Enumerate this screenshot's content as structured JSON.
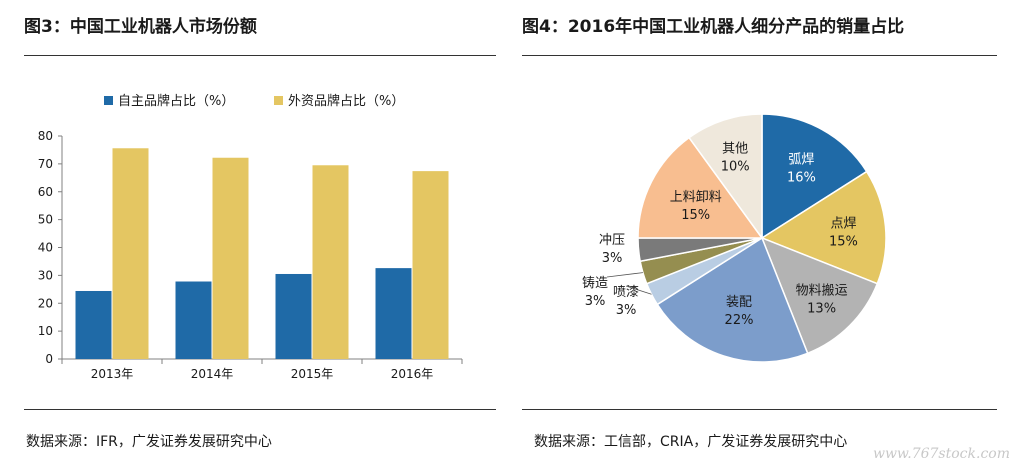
{
  "left": {
    "title": "图3：中国工业机器人市场份额",
    "source": "数据来源：IFR，广发证券发展研究中心"
  },
  "right": {
    "title": "图4：2016年中国工业机器人细分产品的销量占比",
    "source": "数据来源：工信部，CRIA，广发证券发展研究中心"
  },
  "watermark": "www.767stock.com",
  "colors": {
    "blue": "#1F6AA7",
    "gold": "#E4C662"
  },
  "chart_data": [
    {
      "type": "bar",
      "title": "中国工业机器人市场份额",
      "categories": [
        "2013年",
        "2014年",
        "2015年",
        "2016年"
      ],
      "series": [
        {
          "name": "自主品牌占比（%）",
          "values": [
            24.4,
            27.8,
            30.5,
            32.6
          ],
          "color": "#1F6AA7"
        },
        {
          "name": "外资品牌占比（%）",
          "values": [
            75.6,
            72.2,
            69.5,
            67.4
          ],
          "color": "#E4C662"
        }
      ],
      "xlabel": "",
      "ylabel": "",
      "ylim": [
        0,
        80
      ],
      "yticks": [
        0,
        10,
        20,
        30,
        40,
        50,
        60,
        70,
        80
      ],
      "legend": "top",
      "grid": false
    },
    {
      "type": "pie",
      "title": "2016年中国工业机器人细分产品的销量占比",
      "slices": [
        {
          "label": "弧焊",
          "value": 16,
          "text": "16%",
          "color": "#1F6AA7"
        },
        {
          "label": "点焊",
          "value": 15,
          "text": "15%",
          "color": "#E4C662"
        },
        {
          "label": "物料搬运",
          "value": 13,
          "text": "13%",
          "color": "#B3B3B3"
        },
        {
          "label": "装配",
          "value": 22,
          "text": "22%",
          "color": "#7C9DCB"
        },
        {
          "label": "喷漆",
          "value": 3,
          "text": "3%",
          "color": "#B9CDE3"
        },
        {
          "label": "铸造",
          "value": 3,
          "text": "3%",
          "color": "#958E50"
        },
        {
          "label": "冲压",
          "value": 3,
          "text": "3%",
          "color": "#7A7A7A"
        },
        {
          "label": "上料卸料",
          "value": 15,
          "text": "15%",
          "color": "#F8BE90"
        },
        {
          "label": "其他",
          "value": 10,
          "text": "10%",
          "color": "#EFE8DC"
        }
      ],
      "legend": "none"
    }
  ]
}
